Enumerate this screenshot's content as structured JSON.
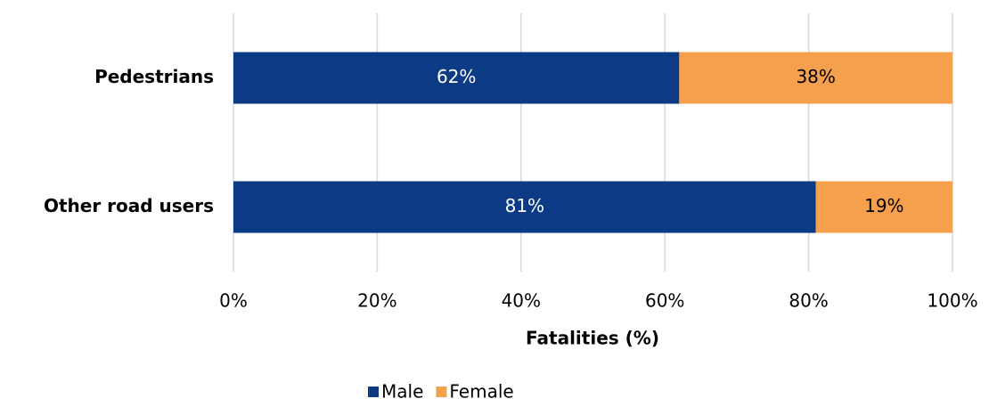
{
  "chart_data": {
    "type": "stacked_bar_horizontal",
    "categories": [
      "Pedestrians",
      "Other road users"
    ],
    "series": [
      {
        "name": "Male",
        "color": "#0d3a85",
        "values": [
          62,
          81
        ],
        "value_labels": [
          "62%",
          "81%"
        ]
      },
      {
        "name": "Female",
        "color": "#f4a04c",
        "values": [
          38,
          19
        ],
        "value_labels": [
          "38%",
          "19%"
        ]
      }
    ],
    "xlabel": "Fatalities (%)",
    "xlim": [
      0,
      100
    ],
    "xticks": [
      {
        "value": 0,
        "label": "0%"
      },
      {
        "value": 20,
        "label": "20%"
      },
      {
        "value": 40,
        "label": "40%"
      },
      {
        "value": 60,
        "label": "60%"
      },
      {
        "value": 80,
        "label": "80%"
      },
      {
        "value": 100,
        "label": "100%"
      }
    ],
    "grid": true,
    "legend": "bottom"
  }
}
